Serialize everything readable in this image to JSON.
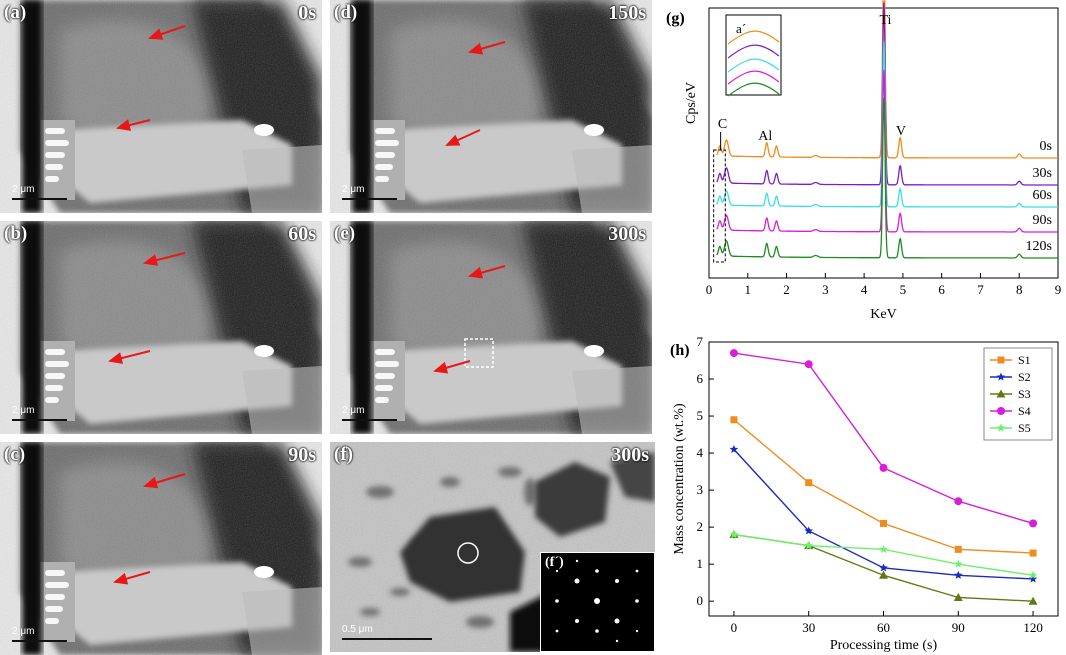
{
  "panels": [
    {
      "id": "a",
      "label": "(a)",
      "time": "0s",
      "scale": "2 μm"
    },
    {
      "id": "b",
      "label": "(b)",
      "time": "60s",
      "scale": "2 μm"
    },
    {
      "id": "c",
      "label": "(c)",
      "time": "90s",
      "scale": "2 μm"
    },
    {
      "id": "d",
      "label": "(d)",
      "time": "150s",
      "scale": "2 μm"
    },
    {
      "id": "e",
      "label": "(e)",
      "time": "300s",
      "scale": "2 μm"
    },
    {
      "id": "f",
      "label": "(f)",
      "time": "300s",
      "scale": "0.5 μm",
      "inset_label": "(f´)"
    }
  ],
  "colors": {
    "s1": "#f08c1e",
    "s2": "#1a2bbf",
    "s3": "#5f7a14",
    "s4": "#d81ed8",
    "s5": "#6ef06e",
    "edx_0": "#f08c1e",
    "edx_30": "#7a1fc8",
    "edx_60": "#38e0e0",
    "edx_90": "#d81ed8",
    "edx_120": "#1f8a1f",
    "arrow": "#e81818"
  },
  "chart_data": [
    {
      "type": "line",
      "panel_label": "(g)",
      "xlabel": "KeV",
      "ylabel": "Cps/eV",
      "xlim": [
        0,
        9
      ],
      "xticks": [
        0,
        1,
        2,
        3,
        4,
        5,
        6,
        7,
        8,
        9
      ],
      "inset_label": "a´",
      "peak_labels": [
        "C",
        "Al",
        "Ti",
        "V"
      ],
      "series": [
        {
          "name": "0s",
          "color": "#f08c1e"
        },
        {
          "name": "30s",
          "color": "#7a1fc8"
        },
        {
          "name": "60s",
          "color": "#38e0e0"
        },
        {
          "name": "90s",
          "color": "#d81ed8"
        },
        {
          "name": "120s",
          "color": "#1f8a1f"
        }
      ],
      "peaks_kev": [
        0.28,
        0.45,
        1.49,
        1.74,
        4.51,
        4.93,
        8.0
      ]
    },
    {
      "type": "line",
      "panel_label": "(h)",
      "xlabel": "Processing time (s)",
      "ylabel": "Mass concentration (wt.%)",
      "xlim": [
        -10,
        130
      ],
      "ylim": [
        -0.4,
        7
      ],
      "xticks": [
        0,
        30,
        60,
        90,
        120
      ],
      "yticks": [
        0,
        1,
        2,
        3,
        4,
        5,
        6,
        7
      ],
      "legend_position": "top-right",
      "x": [
        0,
        30,
        60,
        90,
        120
      ],
      "series": [
        {
          "name": "S1",
          "color": "#f08c1e",
          "marker": "square",
          "values": [
            4.9,
            3.2,
            2.1,
            1.4,
            1.3
          ]
        },
        {
          "name": "S2",
          "color": "#1a2bbf",
          "marker": "star",
          "values": [
            4.1,
            1.9,
            0.9,
            0.7,
            0.6
          ]
        },
        {
          "name": "S3",
          "color": "#5f7a14",
          "marker": "triangle",
          "values": [
            1.8,
            1.5,
            0.7,
            0.1,
            0.0
          ]
        },
        {
          "name": "S4",
          "color": "#d81ed8",
          "marker": "circle",
          "values": [
            6.7,
            6.4,
            3.6,
            2.7,
            2.1
          ]
        },
        {
          "name": "S5",
          "color": "#6ef06e",
          "marker": "star",
          "values": [
            1.8,
            1.5,
            1.4,
            1.0,
            0.7
          ]
        }
      ]
    }
  ]
}
